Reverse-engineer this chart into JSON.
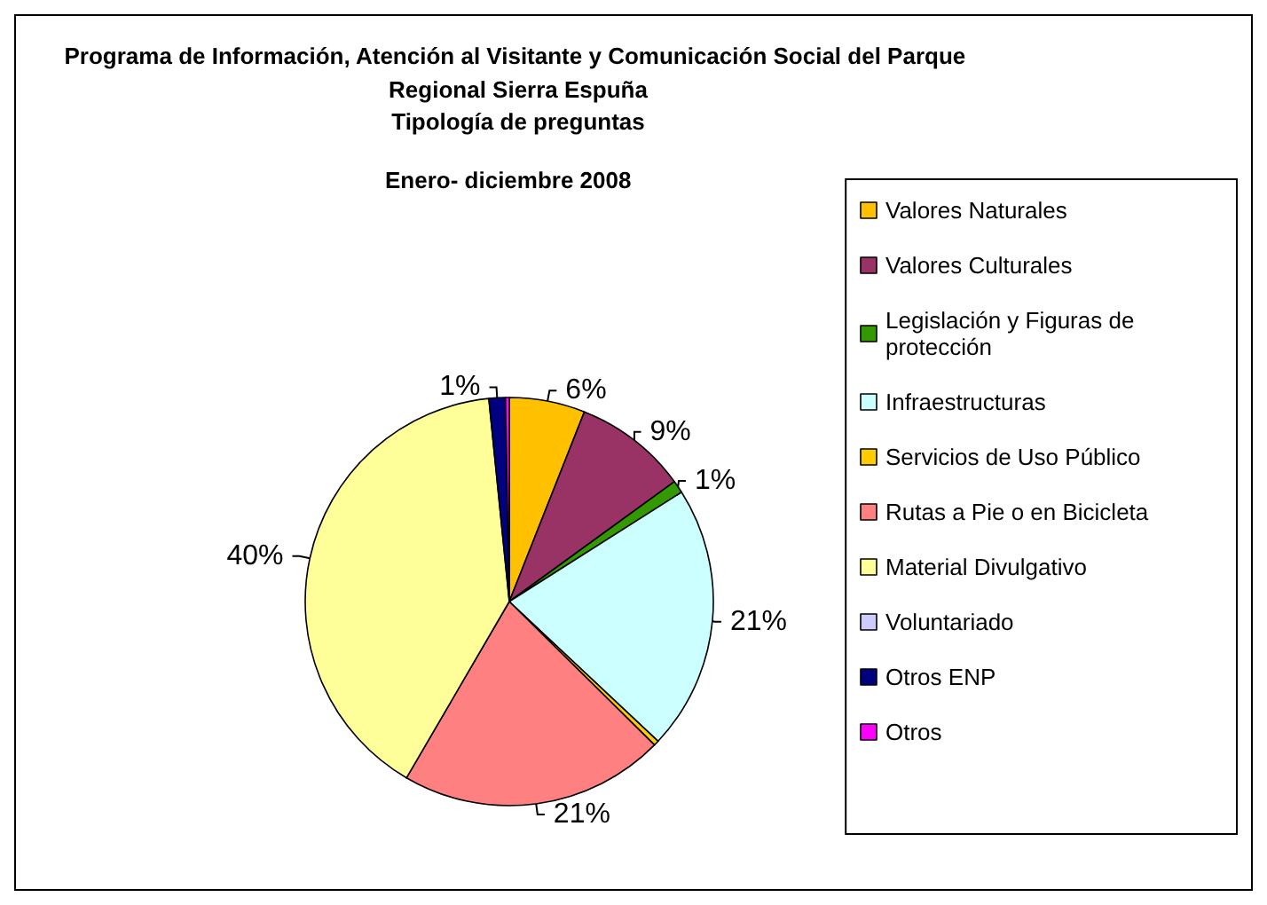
{
  "chart_data": {
    "type": "pie",
    "title": "Programa de Información, Atención al Visitante y Comunicación Social del Parque Regional Sierra Espuña",
    "subtitle": "Tipología de preguntas",
    "annotations": [
      "Enero- diciembre 2008"
    ],
    "categories": [
      "Valores Naturales",
      "Valores Culturales",
      "Legislación y Figuras de protección",
      "Infraestructuras",
      "Servicios de Uso Público",
      "Rutas a Pie o en Bicicleta",
      "Material Divulgativo",
      "Voluntariado",
      "Otros ENP",
      "Otros"
    ],
    "values": [
      6,
      9,
      1,
      21,
      0.4,
      21,
      40,
      null,
      1.3,
      0.3
    ],
    "value_labels": [
      "6%",
      "9%",
      "1%",
      "21%",
      null,
      "21%",
      "40%",
      null,
      "1%",
      null
    ],
    "colors": [
      "#ffc000",
      "#993366",
      "#339900",
      "#ccffff",
      "#ffcc00",
      "#ff8080",
      "#ffff99",
      "#ccccff",
      "#000080",
      "#ff00ff"
    ],
    "legend": "right"
  }
}
